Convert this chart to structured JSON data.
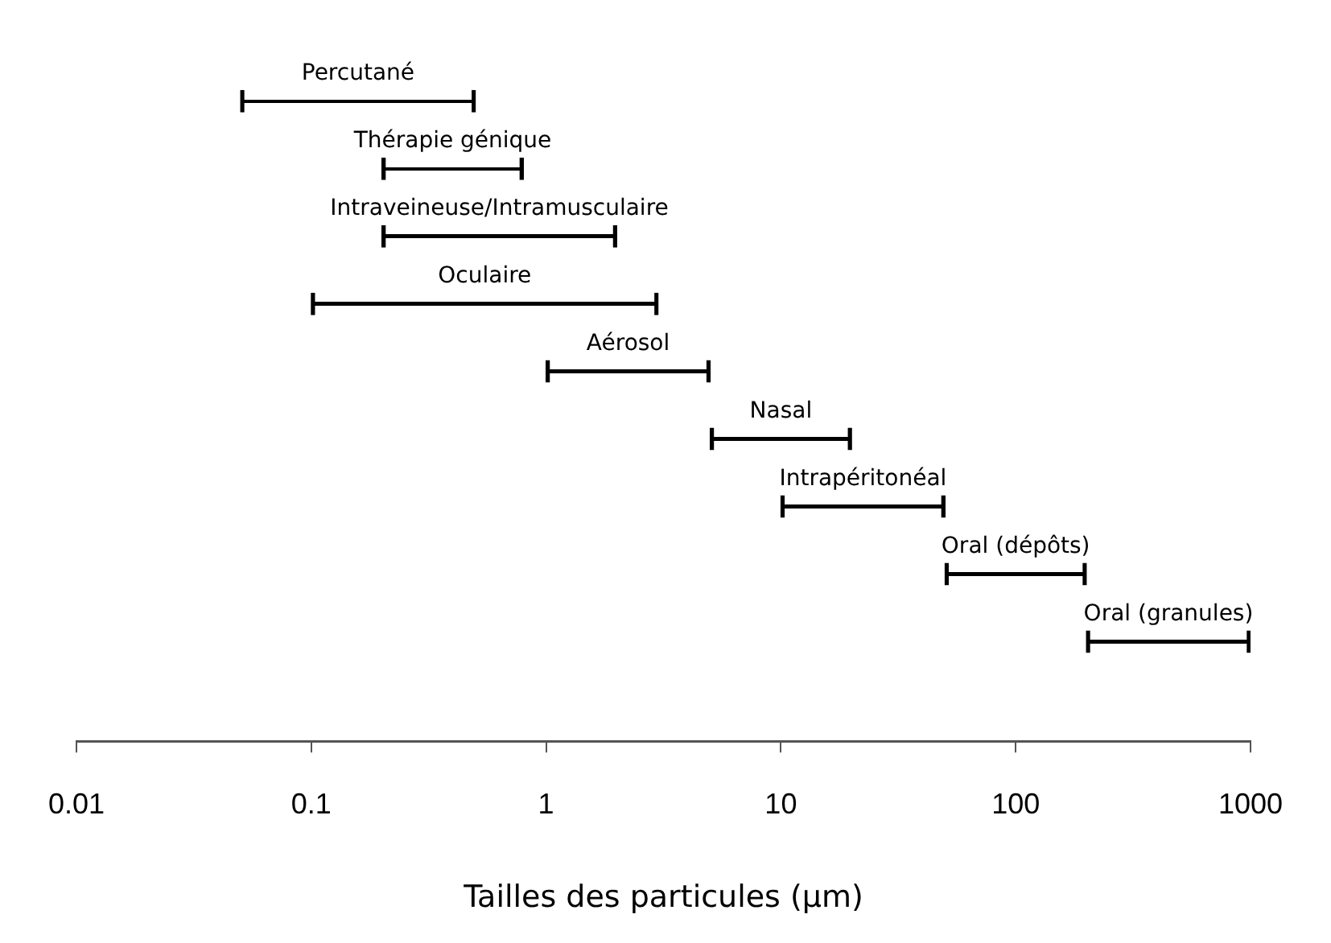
{
  "chart_data": {
    "type": "bar",
    "orientation": "horizontal",
    "categories": [
      "Percutané",
      "Thérapie génique",
      "Intraveineuse/Intramusculaire",
      "Oculaire",
      "Aérosol",
      "Nasal",
      "Intrapéritonéal",
      "Oral (dépôts)",
      "Oral (granules)"
    ],
    "base": [
      0.05,
      0.2,
      0.2,
      0.1,
      1,
      5,
      10,
      50,
      200
    ],
    "values": [
      0.45,
      0.6,
      1.8,
      2.9,
      4,
      15,
      40,
      150,
      800
    ],
    "color": "#000000",
    "xlim": [
      0.01,
      1000
    ],
    "xticks": [
      0.01,
      0.1,
      1,
      10,
      100,
      1000
    ],
    "log": "x",
    "grid": false,
    "legend": false,
    "xlabel": "Tailles des particules (µm)"
  }
}
